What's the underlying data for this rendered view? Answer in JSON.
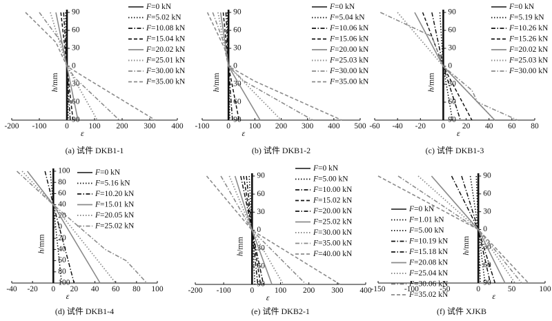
{
  "chart_data": [
    {
      "type": "line",
      "caption": "(a) 试件 DKB1-1",
      "xlabel": "ε",
      "ylabel": "h/mm",
      "xlim": [
        -200,
        400
      ],
      "xticks": [
        -200,
        -100,
        0,
        100,
        200,
        300,
        400
      ],
      "ylim": [
        -90,
        90
      ],
      "yticks": [
        90,
        60,
        30,
        0,
        30,
        60,
        90
      ],
      "series": [
        {
          "name": "F=0 kN",
          "style": "solid-black",
          "x": [
            0,
            0
          ],
          "y": [
            90,
            -90
          ]
        },
        {
          "name": "F=5.02 kN",
          "style": "dot-black",
          "x": [
            -5,
            0,
            5
          ],
          "y": [
            90,
            0,
            -90
          ]
        },
        {
          "name": "F=10.08 kN",
          "style": "dashdot-black",
          "x": [
            -12,
            0,
            12
          ],
          "y": [
            90,
            0,
            -90
          ]
        },
        {
          "name": "F=15.04 kN",
          "style": "dash-black",
          "x": [
            -22,
            0,
            22
          ],
          "y": [
            90,
            0,
            -90
          ]
        },
        {
          "name": "F=20.02 kN",
          "style": "solid-gray",
          "x": [
            -40,
            0,
            40
          ],
          "y": [
            90,
            0,
            -90
          ]
        },
        {
          "name": "F=25.01 kN",
          "style": "dot-gray",
          "x": [
            -60,
            0,
            110
          ],
          "y": [
            90,
            0,
            -90
          ]
        },
        {
          "name": "F=30.00 kN",
          "style": "dashdot-gray",
          "x": [
            -100,
            -20,
            0,
            30,
            190
          ],
          "y": [
            90,
            40,
            0,
            -20,
            -90
          ]
        },
        {
          "name": "F=35.00 kN",
          "style": "dash-gray",
          "x": [
            -150,
            -40,
            0,
            70,
            320
          ],
          "y": [
            90,
            40,
            0,
            -20,
            -90
          ]
        }
      ]
    },
    {
      "type": "line",
      "caption": "(b) 试件 DKB1-2",
      "xlabel": "ε",
      "ylabel": "h/mm",
      "xlim": [
        -100,
        500
      ],
      "xticks": [
        -100,
        0,
        100,
        200,
        300,
        400,
        500
      ],
      "ylim": [
        -90,
        90
      ],
      "yticks": [
        90,
        60,
        30,
        0,
        30,
        60,
        90
      ],
      "series": [
        {
          "name": "F=0 kN",
          "style": "solid-black",
          "x": [
            0,
            0
          ],
          "y": [
            90,
            -90
          ]
        },
        {
          "name": "F=5.04 kN",
          "style": "dot-black",
          "x": [
            -5,
            0,
            5
          ],
          "y": [
            90,
            0,
            -90
          ]
        },
        {
          "name": "F=10.06 kN",
          "style": "dashdot-black",
          "x": [
            -10,
            0,
            15
          ],
          "y": [
            90,
            0,
            -90
          ]
        },
        {
          "name": "F=15.06 kN",
          "style": "dash-black",
          "x": [
            -20,
            0,
            40
          ],
          "y": [
            90,
            0,
            -90
          ]
        },
        {
          "name": "F=20.00 kN",
          "style": "solid-gray",
          "x": [
            -30,
            0,
            120
          ],
          "y": [
            90,
            0,
            -90
          ]
        },
        {
          "name": "F=25.03 kN",
          "style": "dot-gray",
          "x": [
            -40,
            0,
            200
          ],
          "y": [
            90,
            0,
            -90
          ]
        },
        {
          "name": "F=30.00 kN",
          "style": "dashdot-gray",
          "x": [
            -60,
            -10,
            0,
            60,
            320
          ],
          "y": [
            90,
            30,
            0,
            -25,
            -90
          ]
        },
        {
          "name": "F=35.00 kN",
          "style": "dash-gray",
          "x": [
            -80,
            -15,
            0,
            100,
            430
          ],
          "y": [
            90,
            30,
            0,
            -25,
            -90
          ]
        }
      ]
    },
    {
      "type": "line",
      "caption": "(c) 试件 DKB1-3",
      "xlabel": "ε",
      "ylabel": "h/mm",
      "xlim": [
        -60,
        80
      ],
      "xticks": [
        -60,
        -40,
        -20,
        0,
        20,
        40,
        60,
        80
      ],
      "ylim": [
        -90,
        90
      ],
      "yticks": [
        90,
        60,
        30,
        0,
        30,
        60,
        90
      ],
      "series": [
        {
          "name": "F=0 kN",
          "style": "solid-black",
          "x": [
            0,
            0
          ],
          "y": [
            90,
            -90
          ]
        },
        {
          "name": "F=5.19 kN",
          "style": "dot-black",
          "x": [
            -3,
            0,
            8
          ],
          "y": [
            90,
            0,
            -90
          ]
        },
        {
          "name": "F=10.26 kN",
          "style": "dashdot-black",
          "x": [
            -10,
            0,
            15
          ],
          "y": [
            90,
            0,
            -90
          ]
        },
        {
          "name": "F=15.26 kN",
          "style": "dash-black",
          "x": [
            -18,
            0,
            25
          ],
          "y": [
            90,
            0,
            -90
          ]
        },
        {
          "name": "F=20.02 kN",
          "style": "solid-gray",
          "x": [
            -25,
            0,
            45
          ],
          "y": [
            90,
            0,
            -90
          ]
        },
        {
          "name": "F=25.03 kN",
          "style": "dot-gray",
          "x": [
            -40,
            0,
            45
          ],
          "y": [
            90,
            0,
            -90
          ]
        },
        {
          "name": "F=30.00 kN",
          "style": "dashdot-gray",
          "x": [
            -55,
            -10,
            0,
            25,
            30,
            65
          ],
          "y": [
            90,
            50,
            0,
            -40,
            -60,
            -90
          ]
        }
      ]
    },
    {
      "type": "line",
      "caption": "(d) 试件 DKB1-4",
      "xlabel": "ε",
      "ylabel": "h/mm",
      "xlim": [
        -40,
        100
      ],
      "xticks": [
        -40,
        -20,
        0,
        20,
        40,
        60,
        80,
        100
      ],
      "ylim": [
        -100,
        100
      ],
      "yticks": [
        100,
        80,
        60,
        40,
        20,
        0,
        20,
        40,
        60,
        80,
        100
      ],
      "series": [
        {
          "name": "F=0 kN",
          "style": "solid-black",
          "x": [
            0,
            0
          ],
          "y": [
            100,
            -100
          ]
        },
        {
          "name": "F=5.16 kN",
          "style": "dot-black",
          "x": [
            -3,
            0,
            8
          ],
          "y": [
            100,
            40,
            -100
          ]
        },
        {
          "name": "F=10.20 kN",
          "style": "dashdot-black",
          "x": [
            -8,
            0,
            20
          ],
          "y": [
            100,
            40,
            -100
          ]
        },
        {
          "name": "F=15.01 kN",
          "style": "solid-gray",
          "x": [
            -25,
            0,
            45
          ],
          "y": [
            100,
            40,
            -100
          ]
        },
        {
          "name": "F=20.05 kN",
          "style": "dot-gray",
          "x": [
            -30,
            0,
            60
          ],
          "y": [
            100,
            40,
            -100
          ]
        },
        {
          "name": "F=25.02 kN",
          "style": "dashdot-gray",
          "x": [
            -35,
            0,
            50,
            70,
            90
          ],
          "y": [
            100,
            40,
            -40,
            -60,
            -100
          ]
        }
      ]
    },
    {
      "type": "line",
      "caption": "(e) 试件 DKB2-1",
      "xlabel": "ε",
      "ylabel": "h/mm",
      "xlim": [
        -200,
        400
      ],
      "xticks": [
        -200,
        -100,
        0,
        100,
        200,
        300,
        400
      ],
      "ylim": [
        -90,
        90
      ],
      "yticks": [
        90,
        60,
        30,
        0,
        30,
        60,
        90
      ],
      "series": [
        {
          "name": "F=0 kN",
          "style": "solid-black",
          "x": [
            0,
            0
          ],
          "y": [
            90,
            -90
          ]
        },
        {
          "name": "F=5.00 kN",
          "style": "dot-black",
          "x": [
            -10,
            0,
            10
          ],
          "y": [
            90,
            0,
            -90
          ]
        },
        {
          "name": "F=10.00 kN",
          "style": "dashdot-black",
          "x": [
            -20,
            0,
            20
          ],
          "y": [
            90,
            0,
            -90
          ]
        },
        {
          "name": "F=15.02 kN",
          "style": "dash-black",
          "x": [
            -30,
            0,
            30
          ],
          "y": [
            90,
            0,
            -90
          ]
        },
        {
          "name": "F=20.00 kN",
          "style": "dashdot-black",
          "x": [
            -40,
            0,
            40
          ],
          "y": [
            90,
            0,
            -90
          ]
        },
        {
          "name": "F=25.02 kN",
          "style": "solid-gray",
          "x": [
            -60,
            0,
            70
          ],
          "y": [
            90,
            0,
            -90
          ]
        },
        {
          "name": "F=30.00 kN",
          "style": "dot-gray",
          "x": [
            -80,
            0,
            110
          ],
          "y": [
            90,
            0,
            -90
          ]
        },
        {
          "name": "F=35.00 kN",
          "style": "dashdot-gray",
          "x": [
            -110,
            0,
            190
          ],
          "y": [
            90,
            0,
            -90
          ]
        },
        {
          "name": "F=40.00 kN",
          "style": "dash-gray",
          "x": [
            -160,
            0,
            310
          ],
          "y": [
            90,
            0,
            -90
          ]
        }
      ]
    },
    {
      "type": "line",
      "caption": "(f) 试件 XJKB",
      "xlabel": "ε",
      "ylabel": "h/mm",
      "xlim": [
        -150,
        100
      ],
      "xticks": [
        -150,
        -100,
        -50,
        0,
        50,
        100
      ],
      "ylim": [
        -90,
        90
      ],
      "yticks": [
        90,
        60,
        30,
        0,
        30,
        60,
        90
      ],
      "series": [
        {
          "name": "F=0 kN",
          "style": "solid-black",
          "x": [
            0,
            0
          ],
          "y": [
            90,
            -90
          ]
        },
        {
          "name": "F=1.01 kN",
          "style": "dot-black",
          "x": [
            -3,
            0,
            3
          ],
          "y": [
            90,
            0,
            -90
          ]
        },
        {
          "name": "F=5.00 kN",
          "style": "dot-black",
          "x": [
            -12,
            0,
            10
          ],
          "y": [
            90,
            0,
            -90
          ]
        },
        {
          "name": "F=10.19 kN",
          "style": "dashdot-black",
          "x": [
            -25,
            0,
            18
          ],
          "y": [
            90,
            0,
            -90
          ]
        },
        {
          "name": "F=15.18 kN",
          "style": "dashdot-black",
          "x": [
            -40,
            0,
            25
          ],
          "y": [
            90,
            0,
            -90
          ]
        },
        {
          "name": "F=20.08 kN",
          "style": "solid-gray",
          "x": [
            -70,
            0,
            40
          ],
          "y": [
            90,
            0,
            -90
          ]
        },
        {
          "name": "F=25.04 kN",
          "style": "dot-gray",
          "x": [
            -90,
            0,
            55
          ],
          "y": [
            90,
            0,
            -90
          ]
        },
        {
          "name": "F=30.06 kN",
          "style": "dashdot-gray",
          "x": [
            -120,
            0,
            65
          ],
          "y": [
            90,
            0,
            -90
          ]
        },
        {
          "name": "F=35.02 kN",
          "style": "dash-gray",
          "x": [
            -150,
            0,
            75
          ],
          "y": [
            90,
            0,
            -90
          ]
        }
      ]
    }
  ]
}
